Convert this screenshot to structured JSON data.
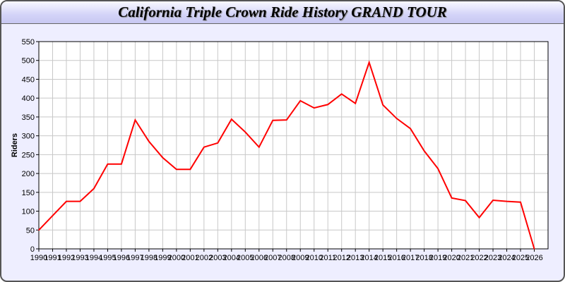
{
  "header": {
    "title": "California Triple Crown Ride History GRAND TOUR"
  },
  "chart_data": {
    "type": "line",
    "title": "California Triple Crown Ride History GRAND TOUR",
    "xlabel": "",
    "ylabel": "Riders",
    "xlim": [
      1990,
      2027
    ],
    "ylim": [
      0,
      550
    ],
    "yticks": [
      0,
      50,
      100,
      150,
      200,
      250,
      300,
      350,
      400,
      450,
      500,
      550
    ],
    "grid": true,
    "line_color": "#ff0000",
    "x": [
      1990,
      1991,
      1992,
      1993,
      1994,
      1995,
      1996,
      1997,
      1998,
      1999,
      2000,
      2001,
      2002,
      2003,
      2004,
      2005,
      2006,
      2007,
      2008,
      2009,
      2010,
      2011,
      2012,
      2013,
      2014,
      2015,
      2016,
      2017,
      2018,
      2019,
      2020,
      2021,
      2022,
      2023,
      2024,
      2025,
      2026
    ],
    "values": [
      50,
      88,
      126,
      126,
      160,
      225,
      225,
      342,
      285,
      242,
      211,
      211,
      270,
      281,
      344,
      310,
      270,
      341,
      342,
      393,
      374,
      383,
      411,
      386,
      495,
      382,
      346,
      319,
      260,
      213,
      135,
      128,
      83,
      129,
      126,
      124,
      0
    ]
  }
}
